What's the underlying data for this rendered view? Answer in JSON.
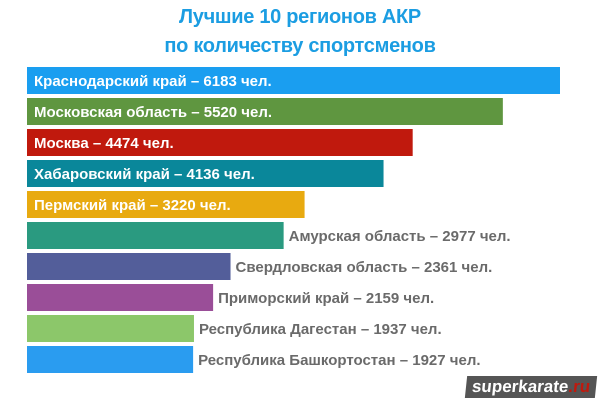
{
  "chart_data": {
    "type": "bar",
    "orientation": "horizontal",
    "title_lines": [
      "Лучшие 10 регионов АКР",
      "по количеству спортсменов"
    ],
    "unit": "чел.",
    "categories": [
      "Краснодарский край",
      "Московская область",
      "Москва",
      "Хабаровский край",
      "Пермский край",
      "Амурская область",
      "Свердловская область",
      "Приморский край",
      "Республика Дагестан",
      "Республика Башкортостан"
    ],
    "values": [
      6183,
      5520,
      4474,
      4136,
      3220,
      2977,
      2361,
      2159,
      1937,
      1927
    ],
    "labels": [
      "Краснодарский край – 6183 чел.",
      "Московская область – 5520 чел.",
      "Москва – 4474 чел.",
      "Хабаровский край – 4136 чел.",
      "Пермский край – 3220 чел.",
      "Амурская область – 2977 чел.",
      "Свердловская область – 2361 чел.",
      "Приморский край – 2159 чел.",
      "Республика Дагестан – 1937 чел.",
      "Республика Башкортостан – 1927 чел."
    ],
    "colors": [
      "#1a9ef0",
      "#5f9640",
      "#c0190d",
      "#0a879a",
      "#e8aa10",
      "#2a9a80",
      "#535e9a",
      "#9a4e98",
      "#8cc76a",
      "#2a9cf0"
    ],
    "grid": false,
    "legend": "none"
  },
  "watermark": {
    "main": "superkarate",
    "suffix": ".ru"
  }
}
